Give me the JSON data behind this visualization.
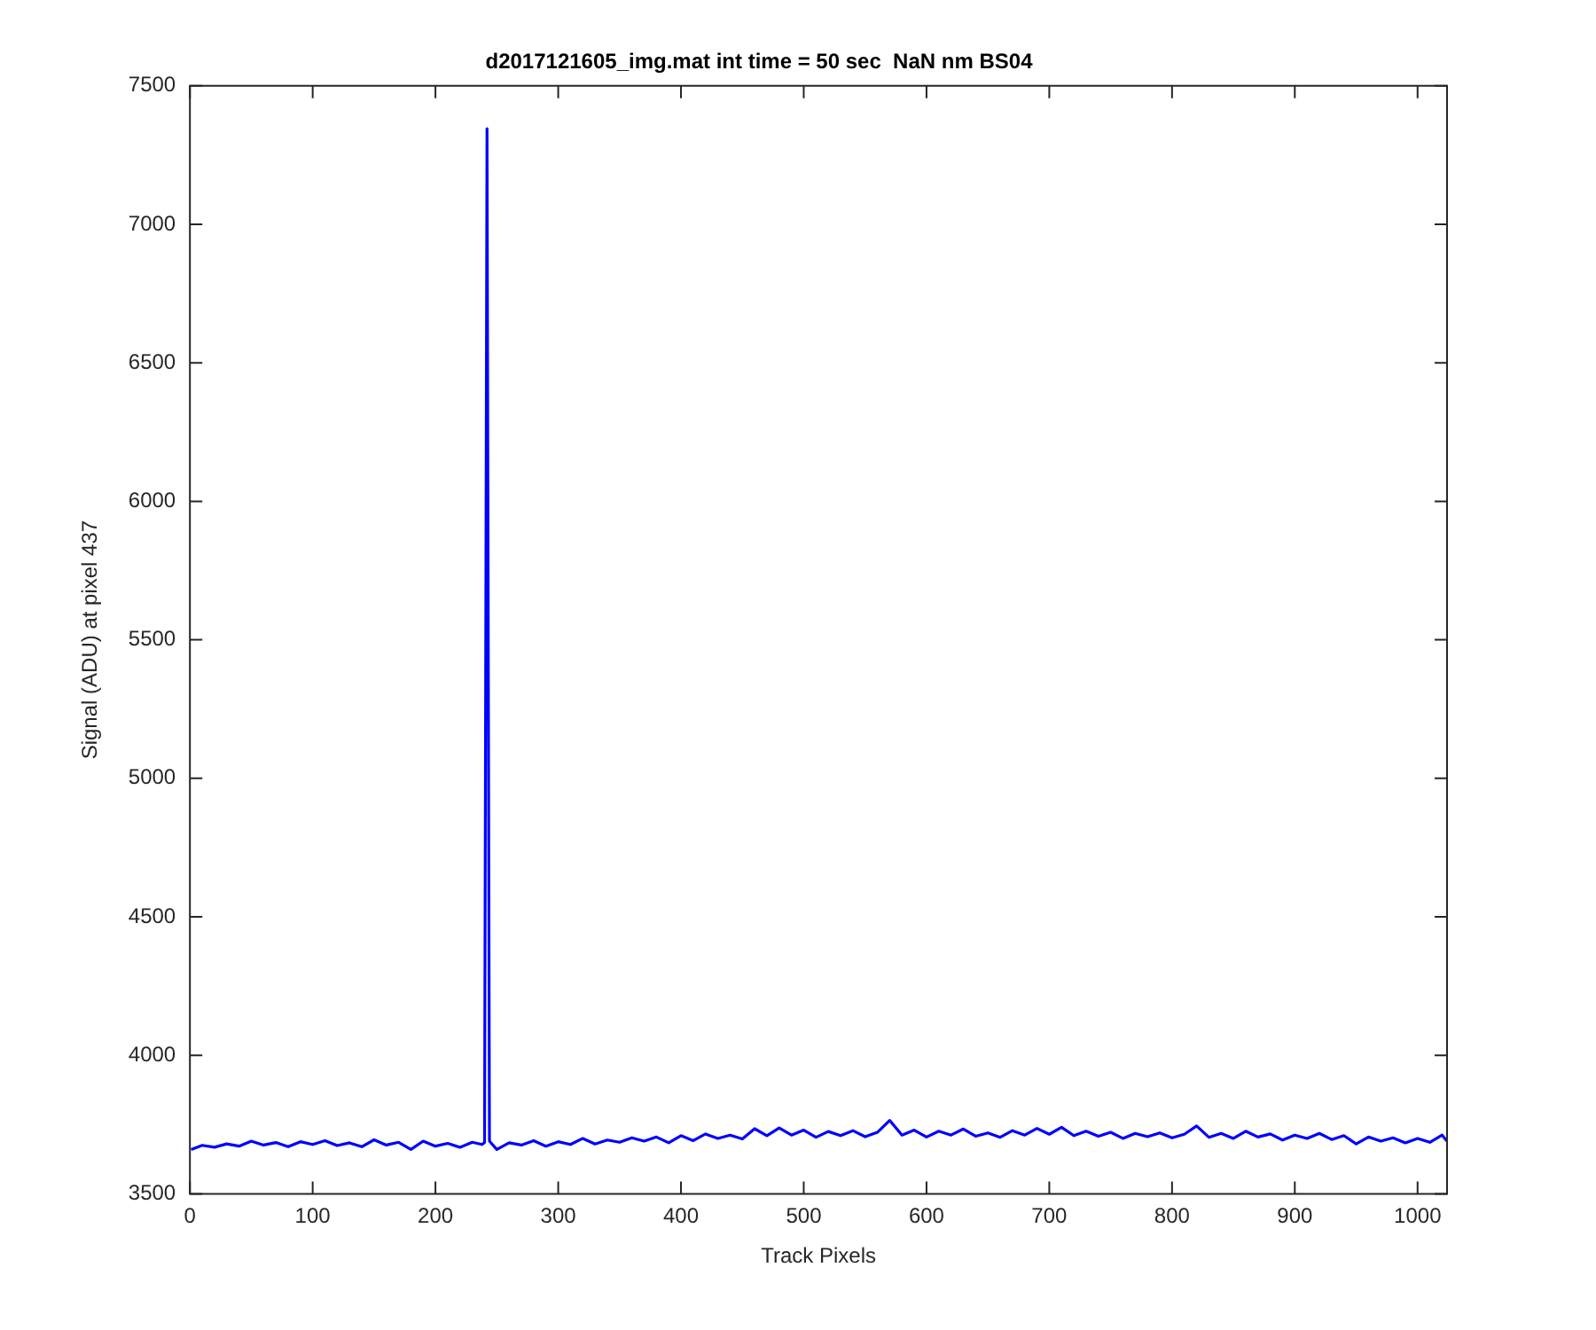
{
  "chart_data": {
    "type": "line",
    "title": "d2017121605_img.mat int time = 50 sec  NaN nm BS04",
    "xlabel": "Track Pixels",
    "ylabel": "Signal (ADU) at pixel 437",
    "x": [
      1,
      10,
      20,
      30,
      40,
      50,
      60,
      70,
      80,
      90,
      100,
      110,
      120,
      130,
      140,
      150,
      160,
      170,
      180,
      190,
      200,
      210,
      220,
      230,
      238,
      240,
      242,
      244,
      250,
      260,
      270,
      280,
      290,
      300,
      310,
      320,
      330,
      340,
      350,
      360,
      370,
      380,
      390,
      400,
      410,
      420,
      430,
      440,
      450,
      460,
      470,
      480,
      490,
      500,
      510,
      520,
      530,
      540,
      550,
      560,
      570,
      580,
      590,
      600,
      610,
      620,
      630,
      640,
      650,
      660,
      670,
      680,
      690,
      700,
      710,
      720,
      730,
      740,
      750,
      760,
      770,
      780,
      790,
      800,
      810,
      820,
      830,
      840,
      850,
      860,
      870,
      880,
      890,
      900,
      910,
      920,
      930,
      940,
      950,
      960,
      970,
      980,
      990,
      1000,
      1010,
      1020,
      1024
    ],
    "series": [
      {
        "color": "#0000ff",
        "values": [
          3660,
          3675,
          3668,
          3680,
          3672,
          3690,
          3676,
          3685,
          3670,
          3688,
          3678,
          3692,
          3674,
          3684,
          3670,
          3695,
          3676,
          3686,
          3660,
          3690,
          3672,
          3682,
          3668,
          3686,
          3678,
          3685,
          7345,
          3690,
          3660,
          3684,
          3676,
          3692,
          3672,
          3688,
          3678,
          3700,
          3680,
          3694,
          3686,
          3702,
          3690,
          3705,
          3684,
          3710,
          3692,
          3716,
          3700,
          3712,
          3698,
          3735,
          3710,
          3738,
          3712,
          3730,
          3704,
          3725,
          3710,
          3728,
          3706,
          3722,
          3765,
          3712,
          3730,
          3705,
          3726,
          3712,
          3734,
          3708,
          3720,
          3704,
          3728,
          3712,
          3736,
          3715,
          3740,
          3710,
          3726,
          3708,
          3722,
          3700,
          3718,
          3706,
          3720,
          3702,
          3715,
          3745,
          3704,
          3718,
          3700,
          3726,
          3705,
          3716,
          3694,
          3712,
          3700,
          3718,
          3696,
          3710,
          3680,
          3705,
          3690,
          3702,
          3684,
          3700,
          3686,
          3712,
          3690
        ]
      }
    ],
    "xlim": [
      0,
      1024
    ],
    "xticks": [
      0,
      100,
      200,
      300,
      400,
      500,
      600,
      700,
      800,
      900,
      1000
    ],
    "ylim": [
      3500,
      7500
    ],
    "yticks": [
      3500,
      4000,
      4500,
      5000,
      5500,
      6000,
      6500,
      7000,
      7500
    ],
    "grid": false,
    "legend": false,
    "marker": "none",
    "line_style": "solid"
  }
}
